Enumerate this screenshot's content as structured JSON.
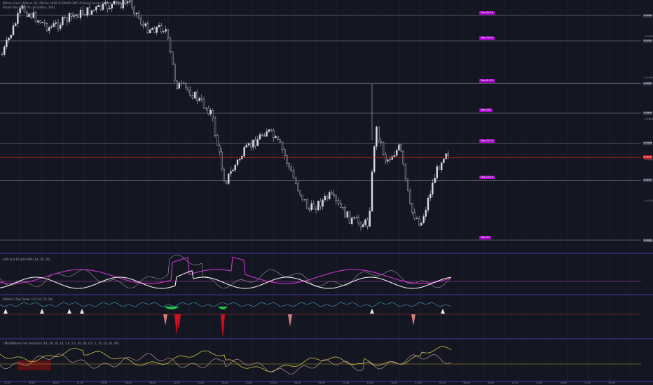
{
  "header": {
    "symbol_line": "Bitcoin Cash / Bitcoin 1D, 28 Dec 2018 12:00:00 GMT+0 base Futures Contract, CoinBase",
    "study_line": "Smart Fibs (auto fib calculation, 144)"
  },
  "fib_levels": [
    {
      "label": "Fibs 88.6%",
      "price": 0.04964
    },
    {
      "label": "Fibs 78.6%",
      "price": 0.04933
    },
    {
      "label": "Fibs 61.8%",
      "price": 0.04881
    },
    {
      "label": "Fibs 50%",
      "price": 0.04845
    },
    {
      "label": "Fibs 38.2%",
      "price": 0.04808
    },
    {
      "label": "Fibs 23.6%",
      "price": 0.04763
    },
    {
      "label": "Fibs 0%",
      "price": 0.0469
    }
  ],
  "price_tags": [
    {
      "text": "0.04964",
      "price": 0.04964
    },
    {
      "text": "0.04933",
      "price": 0.04933
    },
    {
      "text": "0.04881",
      "price": 0.04881
    },
    {
      "text": "0.04845",
      "price": 0.04845
    },
    {
      "text": "0.04808",
      "price": 0.04808
    },
    {
      "text": "0.04763",
      "price": 0.04763
    },
    {
      "text": "0.04690",
      "price": 0.0469
    }
  ],
  "current_price": {
    "text": "0.04791",
    "price": 0.04791
  },
  "y_axis_ticks": [
    {
      "text": "0.04950",
      "price": 0.0495
    },
    {
      "text": "0.04900",
      "price": 0.049
    },
    {
      "text": "0.04850",
      "price": 0.0485
    },
    {
      "text": "0.04800",
      "price": 0.048
    },
    {
      "text": "0.04750",
      "price": 0.0475
    },
    {
      "text": "0.04700",
      "price": 0.047
    }
  ],
  "panes": [
    {
      "title": "ADX and DI with SMA (14, 20, 10)"
    },
    {
      "title": "Bottom / Top Finder 3.0 (14, 70, 30)"
    },
    {
      "title": "CMO/Williams %R Oscillator (14, 28, 30, 10, 1.6, 2.1, 20, 80, 0.5, 1, 70, 10, 30, 40)"
    }
  ],
  "x_axis_labels": [
    "12:00",
    "15:00",
    "18:00",
    "21:00",
    "03:00",
    "06:00",
    "09:00",
    "12:00",
    "15:00",
    "18:00",
    "21:00",
    "03:00",
    "06:00",
    "09:00",
    "12:00",
    "15:00",
    "18:00",
    "21:00",
    "03:00",
    "06:00",
    "09:00",
    "12:00",
    "15:00",
    "18:00",
    "21:00",
    "03:00"
  ],
  "colors": {
    "background": "#141722",
    "grid": "#2a2e39",
    "candle": "#d8dbe2",
    "fib_line": "#8f96a8",
    "fib_label_bg": "#b100d6",
    "current_price": "#e02020",
    "adx": "#ffffff",
    "di_plus": "#cc33cc",
    "di_minus": "#9a9a9a",
    "green_signal": "#22c840",
    "red_signal": "#d01020",
    "cmo": "#e6d84a",
    "wr": "#d9a6a6"
  }
}
